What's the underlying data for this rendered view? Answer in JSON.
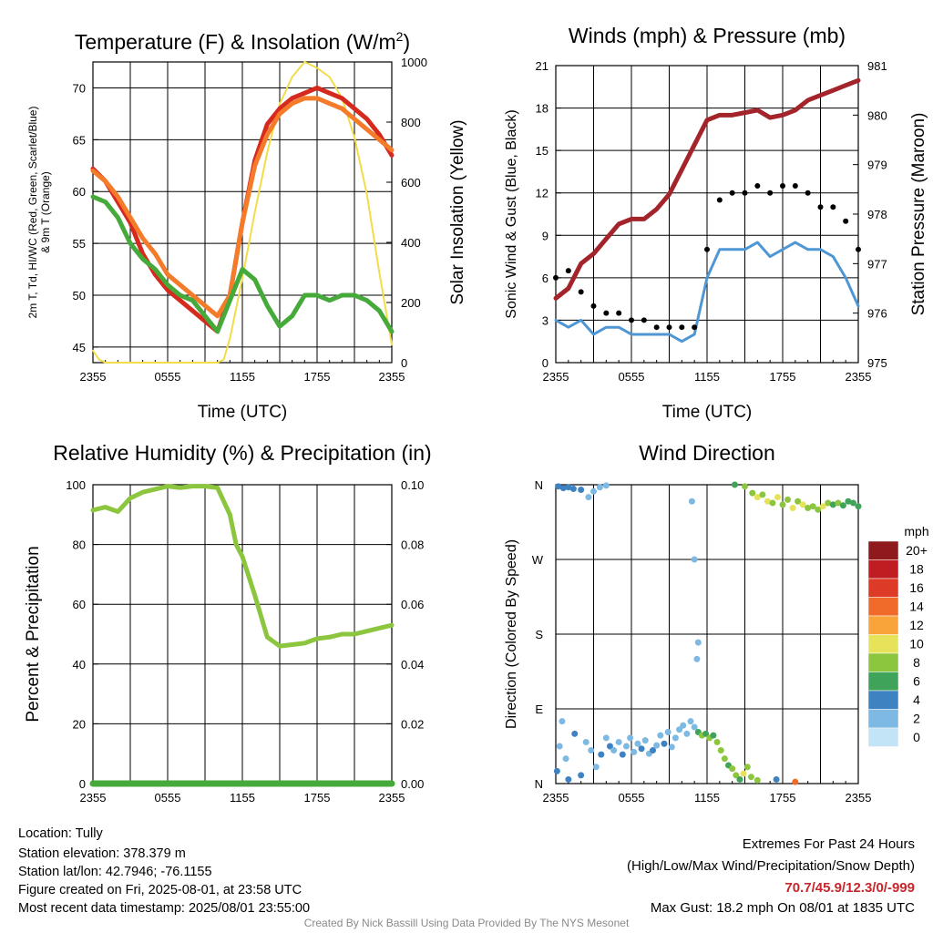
{
  "chart_data": [
    {
      "type": "line",
      "title": "Temperature (F) & Insolation (W/m",
      "title_sup": "2",
      "title_end": ")",
      "xlabel": "Time (UTC)",
      "ylabel_left": "2m T, Td, HI/WC (Red, Green, Scarlet/Blue)",
      "ylabel_left_line2": "& 9m T (Orange)",
      "ylabel_right": "Solar Insolation (Yellow)",
      "x_ticks": [
        "2355",
        "0555",
        "1155",
        "1755",
        "2355"
      ],
      "ylim": [
        43.5,
        72.5
      ],
      "yticks": [
        45,
        50,
        55,
        60,
        65,
        70
      ],
      "y2lim": [
        0,
        1000
      ],
      "y2ticks": [
        0,
        200,
        400,
        600,
        800,
        1000
      ],
      "series": [
        {
          "name": "2m T",
          "color": "#d62a1e",
          "axis": "left",
          "x": [
            0,
            1,
            2,
            3,
            4,
            5,
            6,
            7,
            8,
            9,
            10,
            11,
            12,
            13,
            14,
            15,
            16,
            17,
            18,
            19,
            20,
            21,
            22,
            23,
            24
          ],
          "values": [
            62.2,
            61,
            59,
            57,
            54,
            52,
            50.5,
            49.5,
            48.5,
            47.5,
            46.5,
            50,
            57,
            63,
            66.5,
            68,
            69,
            69.5,
            70,
            69.5,
            69,
            68,
            67,
            65.5,
            63.5
          ]
        },
        {
          "name": "9m T",
          "color": "#f47b2a",
          "axis": "left",
          "x": [
            0,
            1,
            2,
            3,
            4,
            5,
            6,
            7,
            8,
            9,
            10,
            11,
            12,
            13,
            14,
            15,
            16,
            17,
            18,
            19,
            20,
            21,
            22,
            23,
            24
          ],
          "values": [
            62,
            61,
            59.5,
            57.5,
            55.5,
            54,
            52,
            51,
            50,
            49,
            48,
            50,
            57,
            62.5,
            65.5,
            67.5,
            68.5,
            69,
            69,
            68.5,
            68,
            67,
            66,
            65,
            64
          ]
        },
        {
          "name": "Td",
          "color": "#45aa3a",
          "axis": "left",
          "x": [
            0,
            1,
            2,
            3,
            4,
            5,
            6,
            7,
            8,
            9,
            10,
            11,
            12,
            13,
            14,
            15,
            16,
            17,
            18,
            19,
            20,
            21,
            22,
            23,
            24
          ],
          "values": [
            59.5,
            59,
            57.5,
            55,
            53.5,
            52.5,
            51,
            50,
            49.5,
            48,
            46.5,
            49.5,
            52.5,
            51.5,
            49,
            47,
            48,
            50,
            50,
            49.5,
            50,
            50,
            49.5,
            48.5,
            46.5
          ]
        },
        {
          "name": "Insolation",
          "color": "#f2dc4a",
          "axis": "right",
          "x": [
            0,
            0.5,
            1,
            2,
            4,
            6,
            8,
            9,
            10,
            10.5,
            11,
            12,
            13,
            14,
            15,
            16,
            17,
            18,
            19,
            20,
            21,
            22,
            23,
            24
          ],
          "values": [
            40,
            10,
            0,
            0,
            0,
            0,
            0,
            0,
            0,
            10,
            80,
            280,
            500,
            700,
            860,
            950,
            1000,
            980,
            950,
            880,
            750,
            560,
            300,
            60
          ]
        }
      ]
    },
    {
      "type": "line",
      "title": "Winds (mph) & Pressure (mb)",
      "xlabel": "Time (UTC)",
      "ylabel_left": "Sonic Wind & Gust (Blue, Black)",
      "ylabel_right": "Station Pressure (Maroon)",
      "x_ticks": [
        "2355",
        "0555",
        "1155",
        "1755",
        "2355"
      ],
      "ylim": [
        0,
        21
      ],
      "yticks": [
        0,
        3,
        6,
        9,
        12,
        15,
        18,
        21
      ],
      "y2lim": [
        975,
        981
      ],
      "y2ticks": [
        975,
        976,
        977,
        978,
        979,
        980,
        981
      ],
      "series": [
        {
          "name": "Sonic Wind",
          "color": "#4f97d4",
          "axis": "left",
          "x": [
            0,
            1,
            2,
            3,
            4,
            5,
            6,
            7,
            8,
            9,
            10,
            11,
            12,
            13,
            14,
            15,
            16,
            17,
            18,
            19,
            20,
            21,
            22,
            23,
            24
          ],
          "values": [
            3,
            2.5,
            3,
            2,
            2.5,
            2.5,
            2,
            2,
            2,
            2,
            1.5,
            2,
            6,
            8,
            8,
            8,
            8.5,
            7.5,
            8,
            8.5,
            8,
            8,
            7.5,
            6,
            4
          ]
        },
        {
          "name": "Gust",
          "color": "#000000",
          "axis": "left",
          "x": [
            0,
            1,
            2,
            3,
            4,
            5,
            6,
            7,
            8,
            9,
            10,
            11,
            12,
            13,
            14,
            15,
            16,
            17,
            18,
            19,
            20,
            21,
            22,
            23,
            24
          ],
          "values": [
            6,
            6.5,
            5,
            4,
            3.5,
            3.5,
            3,
            3,
            2.5,
            2.5,
            2.5,
            2.5,
            8,
            11.5,
            12,
            12,
            12.5,
            12,
            12.5,
            12.5,
            12,
            11,
            11,
            10,
            8
          ]
        },
        {
          "name": "Station Pressure",
          "color": "#a3242a",
          "axis": "right",
          "x": [
            0,
            1,
            2,
            3,
            4,
            5,
            6,
            7,
            8,
            9,
            10,
            11,
            12,
            13,
            14,
            15,
            16,
            17,
            18,
            19,
            20,
            21,
            22,
            23,
            24
          ],
          "values": [
            976.3,
            976.5,
            977,
            977.2,
            977.5,
            977.8,
            977.9,
            977.9,
            978.1,
            978.4,
            978.9,
            979.4,
            979.9,
            980,
            980,
            980.05,
            980.1,
            979.95,
            980,
            980.1,
            980.3,
            980.4,
            980.5,
            980.6,
            980.7
          ]
        }
      ]
    },
    {
      "type": "line",
      "title": "Relative Humidity (%) & Precipitation (in)",
      "xlabel": "",
      "ylabel_left": "Percent & Precipitation",
      "x_ticks": [
        "2355",
        "0555",
        "1155",
        "1755",
        "2355"
      ],
      "ylim": [
        0,
        100
      ],
      "yticks": [
        0,
        20,
        40,
        60,
        80,
        100
      ],
      "y2lim": [
        0,
        0.1
      ],
      "y2ticks": [
        "0.00",
        "0.02",
        "0.04",
        "0.06",
        "0.08",
        "0.10"
      ],
      "series": [
        {
          "name": "RH",
          "color": "#8cc63f",
          "axis": "left",
          "x": [
            0,
            1,
            2,
            3,
            4,
            5,
            6,
            7,
            8,
            9,
            10,
            11,
            11.5,
            12,
            13,
            14,
            15,
            16,
            17,
            18,
            19,
            20,
            21,
            22,
            23,
            24
          ],
          "values": [
            91.5,
            92.5,
            91,
            95.5,
            97.5,
            98.5,
            99.5,
            99,
            99.5,
            99.5,
            99,
            90,
            80,
            76,
            63,
            49,
            46,
            46.5,
            47,
            48.5,
            49,
            50,
            50,
            51,
            52,
            53
          ]
        },
        {
          "name": "Precipitation",
          "color": "#45aa3a",
          "axis": "left",
          "x": [
            0,
            24
          ],
          "values": [
            0,
            0
          ]
        }
      ]
    },
    {
      "type": "scatter",
      "title": "Wind Direction",
      "ylabel_left": "Direction (Colored By Speed)",
      "x_ticks": [
        "2355",
        "0555",
        "1155",
        "1755",
        "2355"
      ],
      "y_ticks": [
        "N",
        "E",
        "S",
        "W",
        "N"
      ],
      "ylim": [
        0,
        360
      ],
      "colorbar_title": "mph",
      "colorbar_labels": [
        "20+",
        "18",
        "16",
        "14",
        "12",
        "10",
        "8",
        "6",
        "4",
        "2",
        "0"
      ],
      "colorbar_colors": [
        "#8f1a1d",
        "#bf1d22",
        "#dd3a27",
        "#f06a2a",
        "#f9a33b",
        "#e6e35a",
        "#8cc63f",
        "#3fa35a",
        "#3f82c2",
        "#7db9e3",
        "#c3e3f7"
      ],
      "points": [
        {
          "x": 0.2,
          "y": 358,
          "s": 4
        },
        {
          "x": 0.6,
          "y": 356,
          "s": 4
        },
        {
          "x": 1,
          "y": 357,
          "s": 3
        },
        {
          "x": 1.4,
          "y": 355,
          "s": 4
        },
        {
          "x": 2,
          "y": 354,
          "s": 3
        },
        {
          "x": 2.6,
          "y": 345,
          "s": 2
        },
        {
          "x": 3,
          "y": 352,
          "s": 2
        },
        {
          "x": 3.5,
          "y": 357,
          "s": 1
        },
        {
          "x": 4,
          "y": 359,
          "s": 2
        },
        {
          "x": 0.1,
          "y": 15,
          "s": 3
        },
        {
          "x": 0.3,
          "y": 45,
          "s": 2
        },
        {
          "x": 0.5,
          "y": 75,
          "s": 2
        },
        {
          "x": 0.8,
          "y": 30,
          "s": 2
        },
        {
          "x": 1,
          "y": 5,
          "s": 4
        },
        {
          "x": 1.5,
          "y": 60,
          "s": 3
        },
        {
          "x": 2,
          "y": 10,
          "s": 4
        },
        {
          "x": 2.4,
          "y": 50,
          "s": 2
        },
        {
          "x": 2.8,
          "y": 40,
          "s": 2
        },
        {
          "x": 3.2,
          "y": 20,
          "s": 2
        },
        {
          "x": 3.6,
          "y": 35,
          "s": 3
        },
        {
          "x": 4,
          "y": 55,
          "s": 2
        },
        {
          "x": 4.3,
          "y": 45,
          "s": 3
        },
        {
          "x": 4.6,
          "y": 40,
          "s": 2
        },
        {
          "x": 5,
          "y": 50,
          "s": 2
        },
        {
          "x": 5.3,
          "y": 35,
          "s": 3
        },
        {
          "x": 5.6,
          "y": 45,
          "s": 2
        },
        {
          "x": 5.9,
          "y": 55,
          "s": 2
        },
        {
          "x": 6.2,
          "y": 38,
          "s": 2
        },
        {
          "x": 6.5,
          "y": 48,
          "s": 2
        },
        {
          "x": 6.8,
          "y": 42,
          "s": 3
        },
        {
          "x": 7.1,
          "y": 52,
          "s": 2
        },
        {
          "x": 7.4,
          "y": 36,
          "s": 2
        },
        {
          "x": 7.7,
          "y": 40,
          "s": 3
        },
        {
          "x": 8,
          "y": 46,
          "s": 2
        },
        {
          "x": 8.3,
          "y": 58,
          "s": 2
        },
        {
          "x": 8.6,
          "y": 48,
          "s": 3
        },
        {
          "x": 8.9,
          "y": 62,
          "s": 2
        },
        {
          "x": 9.2,
          "y": 44,
          "s": 2
        },
        {
          "x": 9.5,
          "y": 55,
          "s": 2
        },
        {
          "x": 9.8,
          "y": 65,
          "s": 1
        },
        {
          "x": 10.1,
          "y": 70,
          "s": 2
        },
        {
          "x": 10.4,
          "y": 60,
          "s": 2
        },
        {
          "x": 10.7,
          "y": 75,
          "s": 1
        },
        {
          "x": 11,
          "y": 68,
          "s": 2
        },
        {
          "x": 11.3,
          "y": 62,
          "s": 6
        },
        {
          "x": 11.6,
          "y": 58,
          "s": 7
        },
        {
          "x": 11.9,
          "y": 60,
          "s": 6
        },
        {
          "x": 12.2,
          "y": 55,
          "s": 8
        },
        {
          "x": 12.5,
          "y": 58,
          "s": 6
        },
        {
          "x": 12.8,
          "y": 50,
          "s": 7
        },
        {
          "x": 13.1,
          "y": 40,
          "s": 8
        },
        {
          "x": 13.4,
          "y": 30,
          "s": 7
        },
        {
          "x": 13.7,
          "y": 22,
          "s": 6
        },
        {
          "x": 14,
          "y": 18,
          "s": 8
        },
        {
          "x": 14.3,
          "y": 10,
          "s": 7
        },
        {
          "x": 14.6,
          "y": 5,
          "s": 6
        },
        {
          "x": 14.9,
          "y": 12,
          "s": 10
        },
        {
          "x": 15.2,
          "y": 20,
          "s": 8
        },
        {
          "x": 15.5,
          "y": 8,
          "s": 7
        },
        {
          "x": 16,
          "y": 4,
          "s": 8
        },
        {
          "x": 17.5,
          "y": 5,
          "s": 4
        },
        {
          "x": 19,
          "y": 2,
          "s": 13
        },
        {
          "x": 11,
          "y": 270,
          "s": 1
        },
        {
          "x": 11.3,
          "y": 170,
          "s": 1
        },
        {
          "x": 11.2,
          "y": 150,
          "s": 1
        },
        {
          "x": 10.8,
          "y": 340,
          "s": 1
        },
        {
          "x": 14.2,
          "y": 360,
          "s": 6
        },
        {
          "x": 15,
          "y": 358,
          "s": 7
        },
        {
          "x": 15.6,
          "y": 350,
          "s": 8
        },
        {
          "x": 16,
          "y": 345,
          "s": 9
        },
        {
          "x": 16.4,
          "y": 348,
          "s": 8
        },
        {
          "x": 16.8,
          "y": 340,
          "s": 10
        },
        {
          "x": 17.2,
          "y": 338,
          "s": 8
        },
        {
          "x": 17.6,
          "y": 345,
          "s": 9
        },
        {
          "x": 18,
          "y": 336,
          "s": 8
        },
        {
          "x": 18.4,
          "y": 342,
          "s": 7
        },
        {
          "x": 18.8,
          "y": 332,
          "s": 10
        },
        {
          "x": 19.2,
          "y": 340,
          "s": 8
        },
        {
          "x": 19.6,
          "y": 336,
          "s": 9
        },
        {
          "x": 20,
          "y": 332,
          "s": 8
        },
        {
          "x": 20.4,
          "y": 334,
          "s": 7
        },
        {
          "x": 20.8,
          "y": 330,
          "s": 8
        },
        {
          "x": 21.2,
          "y": 334,
          "s": 9
        },
        {
          "x": 21.6,
          "y": 338,
          "s": 8
        },
        {
          "x": 22,
          "y": 336,
          "s": 6
        },
        {
          "x": 22.4,
          "y": 338,
          "s": 7
        },
        {
          "x": 22.8,
          "y": 335,
          "s": 6
        },
        {
          "x": 23.2,
          "y": 340,
          "s": 5
        },
        {
          "x": 23.6,
          "y": 338,
          "s": 6
        },
        {
          "x": 24,
          "y": 334,
          "s": 5
        }
      ]
    }
  ],
  "footer": {
    "location": "Location: Tully",
    "elevation": "Station elevation: 378.379 m",
    "latlon": "Station lat/lon: 42.7946; -76.1155",
    "created": "Figure created on Fri, 2025-08-01, at 23:58 UTC",
    "recent": "Most recent data timestamp: 2025/08/01 23:55:00",
    "extremes_title": "Extremes For Past 24 Hours",
    "extremes_sub": "(High/Low/Max Wind/Precipitation/Snow Depth)",
    "extremes_values": "70.7/45.9/12.3/0/-999",
    "extremes_color": "#c8262b",
    "max_gust": "Max Gust: 18.2 mph On 08/01 at 1835 UTC",
    "credit": "Created By Nick Bassill Using Data Provided By The NYS Mesonet"
  }
}
